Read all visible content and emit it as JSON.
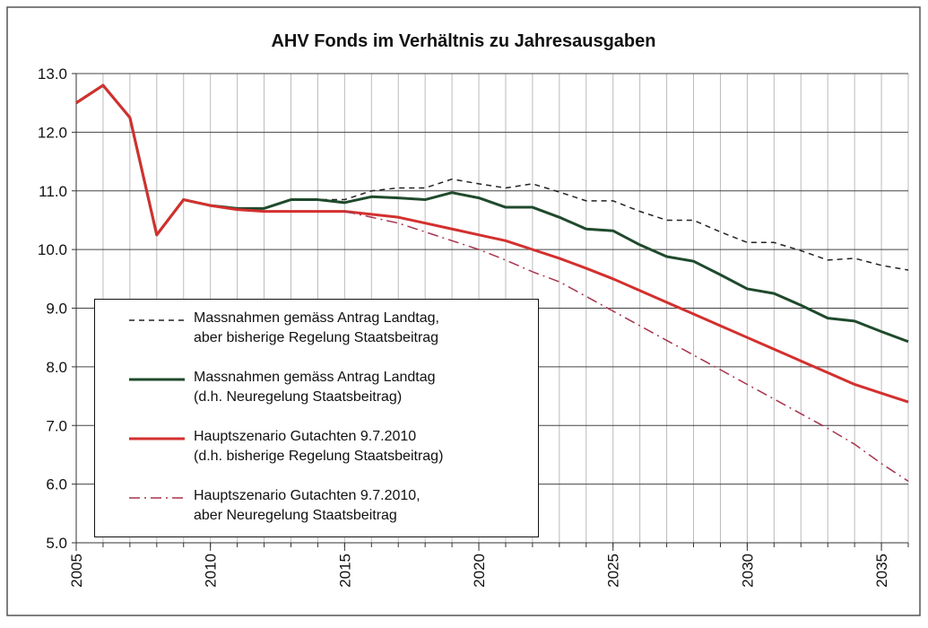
{
  "chart_data": {
    "type": "line",
    "title": "AHV Fonds im Verhältnis zu Jahresausgaben",
    "x": [
      2005,
      2006,
      2007,
      2008,
      2009,
      2010,
      2011,
      2012,
      2013,
      2014,
      2015,
      2016,
      2017,
      2018,
      2019,
      2020,
      2021,
      2022,
      2023,
      2024,
      2025,
      2026,
      2027,
      2028,
      2029,
      2030,
      2031,
      2032,
      2033,
      2034,
      2035,
      2036
    ],
    "xlim": [
      2005,
      2036
    ],
    "xticks": [
      2005,
      2010,
      2015,
      2020,
      2025,
      2030,
      2035
    ],
    "ylim": [
      5,
      13
    ],
    "yticks": [
      {
        "value": 5,
        "label": "5.0"
      },
      {
        "value": 6,
        "label": "6.0"
      },
      {
        "value": 7,
        "label": "7.0"
      },
      {
        "value": 8,
        "label": "8.0"
      },
      {
        "value": 9,
        "label": "9.0"
      },
      {
        "value": 10,
        "label": "10.0"
      },
      {
        "value": 11,
        "label": "11.0"
      },
      {
        "value": 12,
        "label": "12.0"
      },
      {
        "value": 13,
        "label": "13.0"
      }
    ],
    "grid": true,
    "legend": "lower left",
    "series": [
      {
        "name": "Massnahmen gemäss Antrag Landtag,\naber bisherige Regelung Staatsbeitrag",
        "color": "#222222",
        "dash": "dashed",
        "width": 1.5,
        "values": [
          null,
          null,
          null,
          null,
          null,
          null,
          null,
          10.7,
          10.85,
          10.85,
          10.85,
          11.0,
          11.05,
          11.05,
          11.2,
          11.12,
          11.05,
          11.12,
          10.98,
          10.83,
          10.83,
          10.65,
          10.5,
          10.5,
          10.3,
          10.12,
          10.12,
          9.98,
          9.82,
          9.85,
          9.73,
          9.65
        ]
      },
      {
        "name": "Massnahmen gemäss Antrag Landtag\n(d.h. Neuregelung Staatsbeitrag)",
        "color": "#1f4a2c",
        "dash": "solid",
        "width": 3,
        "values": [
          12.5,
          12.8,
          12.25,
          10.25,
          10.85,
          10.75,
          10.7,
          10.7,
          10.85,
          10.85,
          10.8,
          10.9,
          10.88,
          10.85,
          10.97,
          10.88,
          10.72,
          10.72,
          10.55,
          10.35,
          10.32,
          10.08,
          9.88,
          9.8,
          9.57,
          9.33,
          9.25,
          9.05,
          8.83,
          8.78,
          8.6,
          8.43
        ]
      },
      {
        "name": "Hauptszenario Gutachten 9.7.2010\n(d.h. bisherige Regelung Staatsbeitrag)",
        "color": "#d3302e",
        "dash": "solid",
        "width": 3,
        "values": [
          12.5,
          12.8,
          12.25,
          10.25,
          10.85,
          10.75,
          10.68,
          10.65,
          10.65,
          10.65,
          10.65,
          10.6,
          10.55,
          10.45,
          10.35,
          10.25,
          10.15,
          10.0,
          9.85,
          9.68,
          9.5,
          9.3,
          9.1,
          8.9,
          8.7,
          8.5,
          8.3,
          8.1,
          7.9,
          7.7,
          7.55,
          7.4
        ]
      },
      {
        "name": "Hauptszenario Gutachten 9.7.2010,\naber Neuregelung Staatsbeitrag",
        "color": "#a8344e",
        "dash": "dashdot",
        "width": 1.5,
        "values": [
          null,
          null,
          null,
          null,
          null,
          null,
          null,
          null,
          null,
          null,
          10.65,
          10.55,
          10.45,
          10.3,
          10.15,
          10.0,
          9.82,
          9.62,
          9.45,
          9.2,
          8.95,
          8.7,
          8.45,
          8.2,
          7.95,
          7.7,
          7.45,
          7.2,
          6.95,
          6.68,
          6.35,
          6.05
        ]
      }
    ]
  }
}
